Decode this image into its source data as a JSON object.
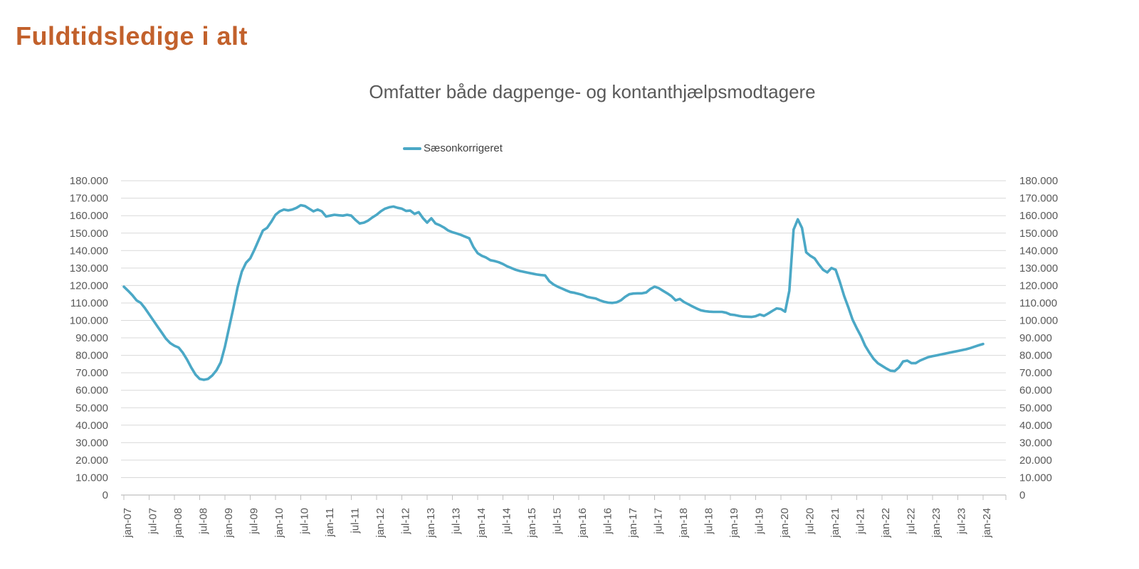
{
  "title": {
    "text": "Fuldtidsledige i alt",
    "color": "#C2612C"
  },
  "chart": {
    "subtitle": "Omfatter både dagpenge- og kontanthjælpsmodtagere",
    "legend": {
      "label": "Sæsonkorrigeret"
    },
    "colors": {
      "series_line": "#4BA8C6",
      "gridline": "#D9D9D9",
      "axis_line": "#BFBFBF",
      "axis_label_text": "#595959",
      "subtitle_text": "#595959",
      "legend_text": "#404040"
    }
  },
  "chart_data": {
    "type": "line",
    "title": "Omfatter både dagpenge- og kontanthjælpsmodtagere",
    "xlabel": "",
    "ylabel": "",
    "ylim": [
      0,
      180000
    ],
    "y_tick_step": 10000,
    "grid": true,
    "legend_position": "top-center",
    "x_frequency": "monthly",
    "x_range": [
      "jan-07",
      "jan-24"
    ],
    "y_tick_labels": [
      "180.000",
      "170.000",
      "160.000",
      "150.000",
      "140.000",
      "130.000",
      "120.000",
      "110.000",
      "100.000",
      "90.000",
      "80.000",
      "70.000",
      "60.000",
      "50.000",
      "40.000",
      "30.000",
      "20.000",
      "10.000",
      "0"
    ],
    "y_axis_mirrored": true,
    "x_visible_ticks": [
      "jan-07",
      "jul-07",
      "jan-08",
      "jul-08",
      "jan-09",
      "jul-09",
      "jan-10",
      "jul-10",
      "jan-11",
      "jul-11",
      "jan-12",
      "jul-12",
      "jan-13",
      "jul-13",
      "jan-14",
      "jul-14",
      "jan-15",
      "jul-15",
      "jan-16",
      "jul-16",
      "jan-17",
      "jul-17",
      "jan-18",
      "jul-18",
      "jan-19",
      "jul-19",
      "jan-20",
      "jul-20",
      "jan-21",
      "jul-21",
      "jan-22",
      "jul-22",
      "jan-23",
      "jul-23",
      "jan-24"
    ],
    "series": [
      {
        "name": "Sæsonkorrigeret",
        "color": "#4BA8C6",
        "values": [
          119300,
          117000,
          114500,
          111500,
          110000,
          107000,
          103500,
          100000,
          96500,
          93000,
          89500,
          87000,
          85500,
          84500,
          81500,
          77500,
          73000,
          69000,
          66500,
          66000,
          66500,
          68500,
          71500,
          76000,
          85000,
          96000,
          107000,
          119000,
          128000,
          133000,
          135500,
          140500,
          146000,
          151500,
          153000,
          156500,
          160500,
          162500,
          163500,
          163000,
          163500,
          164500,
          166000,
          165500,
          164000,
          162500,
          163500,
          162500,
          159500,
          160000,
          160500,
          160200,
          160000,
          160500,
          160000,
          157500,
          155500,
          156000,
          157200,
          159000,
          160500,
          162500,
          164000,
          164800,
          165200,
          164500,
          164000,
          162700,
          162900,
          161000,
          162000,
          158600,
          156000,
          158500,
          155500,
          154500,
          153200,
          151500,
          150500,
          149800,
          149000,
          148000,
          147000,
          142000,
          138500,
          137000,
          136000,
          134500,
          134000,
          133300,
          132300,
          131000,
          130000,
          129000,
          128300,
          127800,
          127300,
          126800,
          126300,
          126000,
          125800,
          122500,
          120600,
          119300,
          118300,
          117200,
          116200,
          115800,
          115200,
          114500,
          113500,
          113000,
          112600,
          111500,
          110700,
          110200,
          110000,
          110400,
          111500,
          113500,
          115000,
          115400,
          115500,
          115500,
          116000,
          118000,
          119300,
          118500,
          117000,
          115500,
          113900,
          111500,
          112300,
          110500,
          109300,
          108000,
          106800,
          105800,
          105300,
          105000,
          104900,
          104900,
          104900,
          104400,
          103400,
          103100,
          102600,
          102200,
          102100,
          102000,
          102400,
          103400,
          102600,
          104000,
          105500,
          106900,
          106500,
          105000,
          117000,
          152000,
          157900,
          153000,
          139000,
          137000,
          135500,
          132000,
          129000,
          127500,
          130000,
          129000,
          122000,
          114000,
          107500,
          100500,
          95500,
          91000,
          85500,
          81500,
          78000,
          75500,
          74000,
          72500,
          71200,
          71000,
          73000,
          76500,
          77000,
          75500,
          75500,
          77000,
          78000,
          79000,
          79500,
          80000,
          80500,
          81000,
          81500,
          82000,
          82500,
          83000,
          83500,
          84200,
          85000,
          85800,
          86500
        ]
      }
    ]
  }
}
